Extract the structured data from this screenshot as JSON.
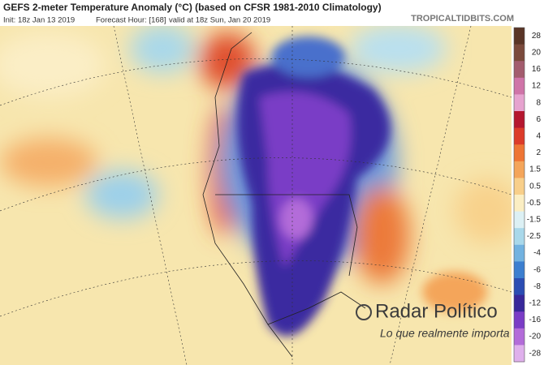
{
  "header": {
    "title": "GEFS 2-meter Temperature Anomaly (°C) (based on CFSR 1981-2010 Climatology)",
    "init": "Init: 18z Jan 13 2019",
    "forecast": "Forecast Hour: [168]",
    "valid": "valid at 18z Sun, Jan 20 2019",
    "site": "TROPICALTIDBITS.COM"
  },
  "colorbar": {
    "labels": [
      "28",
      "20",
      "16",
      "12",
      "8",
      "6",
      "4",
      "2",
      "1.5",
      "0.5",
      "-0.5",
      "-1.5",
      "-2.5",
      "-4",
      "-6",
      "-8",
      "-12",
      "-16",
      "-20",
      "-28"
    ],
    "colors": [
      "#5a3527",
      "#7b4a3c",
      "#a35c6e",
      "#cf74a8",
      "#e6a3cf",
      "#b5172f",
      "#dc3b2a",
      "#ee7535",
      "#f4a55a",
      "#f8cf8a",
      "#fbeec3",
      "#dcf0f4",
      "#a9d8ea",
      "#72b2e0",
      "#3c7fd0",
      "#2b4db3",
      "#38289a",
      "#7a3cc6",
      "#b36cd9",
      "#dfb0ec"
    ]
  },
  "watermark": {
    "name": "Radar Político",
    "slogan": "Lo que realmente importa"
  }
}
